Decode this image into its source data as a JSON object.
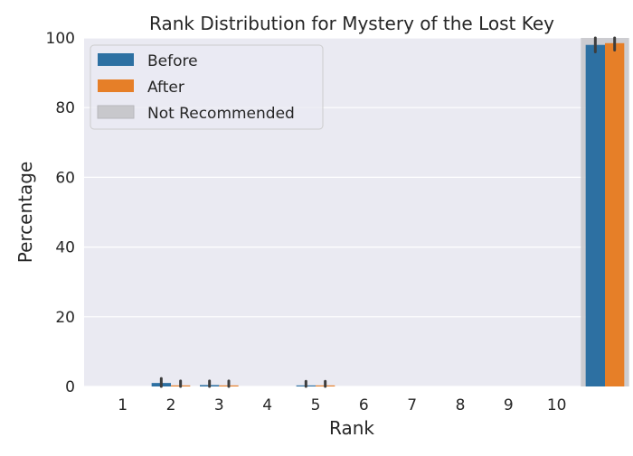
{
  "chart_data": {
    "type": "bar",
    "title": "Rank Distribution for Mystery of the Lost Key",
    "xlabel": "Rank",
    "ylabel": "Percentage",
    "ylim": [
      0,
      100
    ],
    "y_ticks": [
      0,
      20,
      40,
      60,
      80,
      100
    ],
    "categories": [
      "1",
      "2",
      "3",
      "4",
      "5",
      "6",
      "7",
      "8",
      "9",
      "10",
      ""
    ],
    "series": [
      {
        "name": "Before",
        "color": "#2d70a2",
        "values": [
          0,
          1.0,
          0.4,
          0,
          0.3,
          0,
          0,
          0,
          0,
          0,
          98.0
        ],
        "error_high": [
          0,
          2.3,
          1.6,
          0,
          1.5,
          0,
          0,
          0,
          0,
          0,
          100.0
        ],
        "error_low": [
          0,
          0,
          0,
          0,
          0,
          0,
          0,
          0,
          0,
          0,
          96.0
        ]
      },
      {
        "name": "After",
        "color": "#e67f28",
        "values": [
          0,
          0.3,
          0.3,
          0,
          0.3,
          0,
          0,
          0,
          0,
          0,
          98.5
        ],
        "error_high": [
          0,
          1.6,
          1.6,
          0,
          1.5,
          0,
          0,
          0,
          0,
          0,
          100.0
        ],
        "error_low": [
          0,
          0,
          0,
          0,
          0,
          0,
          0,
          0,
          0,
          0,
          96.5
        ]
      }
    ],
    "highlight": {
      "name": "Not Recommended",
      "color": "#c8c8cc",
      "category_index": 10
    },
    "legend_position": "top-left",
    "grid": true,
    "background": "#eaeaf2"
  }
}
